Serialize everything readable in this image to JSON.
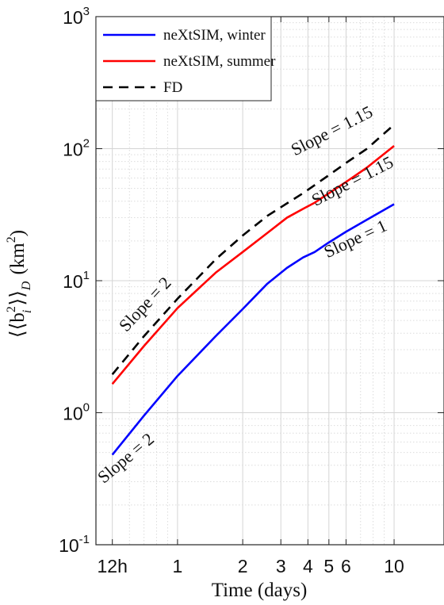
{
  "chart_data": {
    "type": "line",
    "title": "",
    "xlabel": "Time (days)",
    "ylabel": {
      "prefix": "⟨⟨b",
      "sub_i": "i",
      "sup_2": "2",
      "suffix": "⟩⟩",
      "sub_D": "D",
      "unit_open": "(km",
      "unit_sup": "2",
      "unit_close": ")"
    },
    "x_scale": "log",
    "y_scale": "log",
    "xlim": [
      0.42,
      17
    ],
    "ylim": [
      0.1,
      1000
    ],
    "grid": true,
    "x_ticks": [
      {
        "value": 0.5,
        "label": "12h"
      },
      {
        "value": 1,
        "label": "1"
      },
      {
        "value": 2,
        "label": "2"
      },
      {
        "value": 3,
        "label": "3"
      },
      {
        "value": 4,
        "label": "4"
      },
      {
        "value": 5,
        "label": "5"
      },
      {
        "value": 6,
        "label": "6"
      },
      {
        "value": 10,
        "label": "10"
      }
    ],
    "y_ticks": [
      {
        "value": 0.1,
        "base": "10",
        "exp": "-1"
      },
      {
        "value": 1,
        "base": "10",
        "exp": "0"
      },
      {
        "value": 10,
        "base": "10",
        "exp": "1"
      },
      {
        "value": 100,
        "base": "10",
        "exp": "2"
      },
      {
        "value": 1000,
        "base": "10",
        "exp": "3"
      }
    ],
    "legend_position": "top-left",
    "series": [
      {
        "name": "neXtSIM, winter",
        "color": "#0000ff",
        "dash": "solid",
        "x": [
          0.5,
          0.7,
          1.0,
          1.5,
          2.0,
          2.6,
          3.2,
          3.8,
          4.3,
          5.0,
          6.0,
          7.5,
          10.0
        ],
        "y": [
          0.48,
          0.95,
          1.9,
          3.8,
          6.1,
          9.5,
          12.5,
          15.0,
          16.5,
          19.5,
          23.5,
          29.0,
          38.0
        ]
      },
      {
        "name": "neXtSIM, summer",
        "color": "#ff0000",
        "dash": "solid",
        "x": [
          0.5,
          0.7,
          1.0,
          1.5,
          2.0,
          2.6,
          3.2,
          3.8,
          4.3,
          5.0,
          6.0,
          7.5,
          10.0
        ],
        "y": [
          1.65,
          3.2,
          6.2,
          11.5,
          16.5,
          23.0,
          30.0,
          35.0,
          39.0,
          46.0,
          56.0,
          72.0,
          105.0
        ]
      },
      {
        "name": "FD",
        "color": "#000000",
        "dash": "dashed",
        "x": [
          0.5,
          0.7,
          1.0,
          1.5,
          2.0,
          2.6,
          3.2,
          3.8,
          4.3,
          5.0,
          6.0,
          7.5,
          10.0
        ],
        "y": [
          1.95,
          3.8,
          7.3,
          14.5,
          22.0,
          31.0,
          38.5,
          46.0,
          53.0,
          63.0,
          78.0,
          100.0,
          152.0
        ]
      }
    ],
    "annotations": [
      {
        "text": "Slope = 2",
        "x": 0.6,
        "y": 0.42,
        "angle": -40
      },
      {
        "text": "Slope = 2",
        "x": 0.74,
        "y": 6.2,
        "angle": -47
      },
      {
        "text": "Slope = 1.15",
        "x": 5.3,
        "y": 125,
        "angle": -27
      },
      {
        "text": "Slope = 1.15",
        "x": 6.6,
        "y": 52,
        "angle": -27
      },
      {
        "text": "Slope = 1",
        "x": 6.8,
        "y": 19,
        "angle": -25
      }
    ]
  }
}
